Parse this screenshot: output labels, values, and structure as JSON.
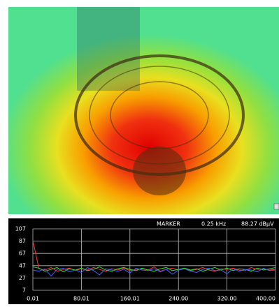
{
  "chart_data": {
    "type": "line",
    "marker_label": "MARKER",
    "marker_freq": "0.25 kHz",
    "marker_level": "88.27 dBμV",
    "x": [
      0.01,
      10,
      20,
      30,
      40,
      50,
      60,
      70,
      80,
      90,
      100,
      110,
      120,
      130,
      140,
      150,
      160,
      170,
      180,
      190,
      200,
      210,
      220,
      230,
      240,
      250,
      260,
      270,
      280,
      290,
      300,
      310,
      320,
      330,
      340,
      350,
      360,
      370,
      380,
      390,
      400
    ],
    "series": [
      {
        "color": "#ff3030",
        "values": [
          88,
          42,
          40,
          44,
          38,
          41,
          43,
          39,
          42,
          40,
          44,
          41,
          38,
          42,
          40,
          43,
          39,
          41,
          42,
          40,
          45,
          38,
          41,
          43,
          40,
          42,
          39,
          41,
          44,
          40,
          38,
          42,
          41,
          43,
          40,
          39,
          44,
          41,
          42,
          40,
          41
        ]
      },
      {
        "color": "#30e030",
        "values": [
          45,
          43,
          38,
          41,
          44,
          37,
          42,
          40,
          43,
          39,
          41,
          45,
          40,
          38,
          42,
          44,
          41,
          39,
          43,
          40,
          38,
          42,
          44,
          39,
          41,
          43,
          40,
          42,
          38,
          41,
          44,
          40,
          43,
          39,
          42,
          41,
          38,
          43,
          40,
          42,
          44
        ]
      },
      {
        "color": "#4060ff",
        "values": [
          40,
          38,
          42,
          30,
          41,
          43,
          37,
          40,
          36,
          44,
          39,
          32,
          42,
          40,
          38,
          41,
          35,
          43,
          40,
          39,
          42,
          37,
          41,
          33,
          40,
          42,
          38,
          36,
          41,
          43,
          39,
          40,
          34,
          42,
          38,
          41,
          40,
          37,
          43,
          39,
          40
        ]
      }
    ],
    "xlim": [
      0.01,
      400
    ],
    "xticks": [
      0.01,
      80.01,
      160.01,
      {
        "value": 240,
        "label": "240.00"
      },
      {
        "value": 320,
        "label": "320.00"
      },
      {
        "value": 400,
        "label": "400.00"
      }
    ],
    "ylim": [
      7,
      107
    ],
    "yticks": [
      107,
      87,
      67,
      47,
      27,
      7
    ],
    "grid": true
  }
}
